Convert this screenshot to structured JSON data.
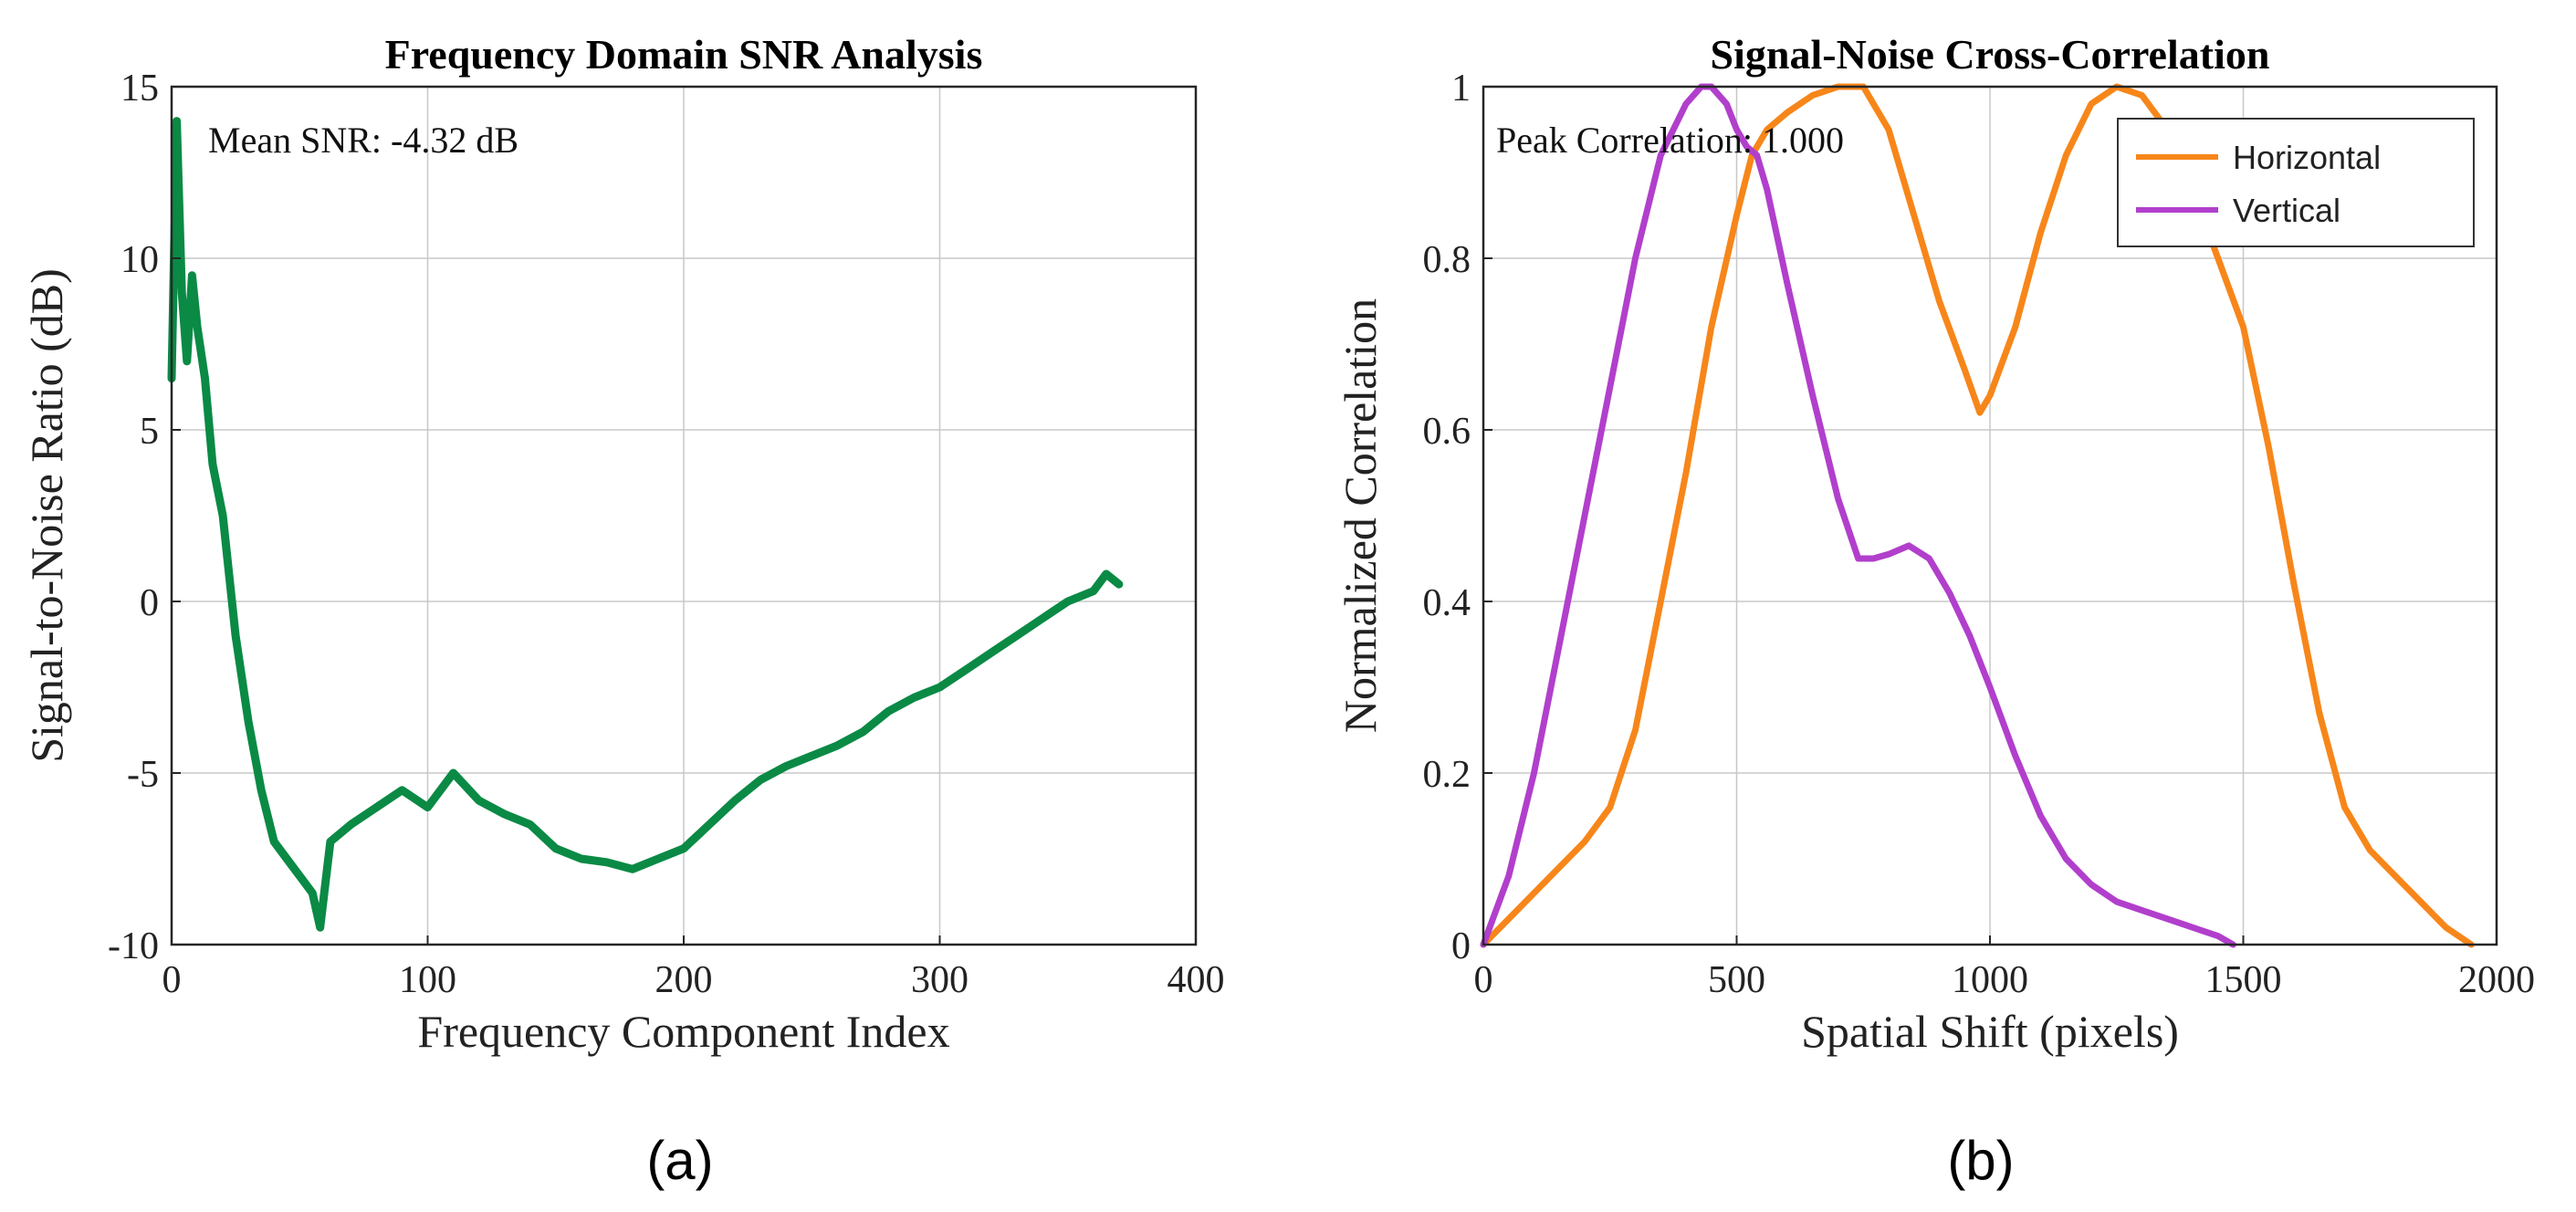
{
  "chart_data": [
    {
      "type": "line",
      "panel": "(a)",
      "title": "Frequency Domain SNR Analysis",
      "xlabel": "Frequency Component Index",
      "ylabel": "Signal-to-Noise Ratio (dB)",
      "xlim": [
        0,
        400
      ],
      "ylim": [
        -10,
        15
      ],
      "xticks": [
        0,
        100,
        200,
        300,
        400
      ],
      "yticks": [
        -10,
        -5,
        0,
        5,
        10,
        15
      ],
      "grid": true,
      "annotation": "Mean SNR: -4.32 dB",
      "series": [
        {
          "name": "SNR",
          "color": "#0a8a45",
          "x": [
            0,
            2,
            4,
            6,
            8,
            10,
            13,
            16,
            20,
            25,
            30,
            35,
            40,
            45,
            50,
            55,
            58,
            62,
            70,
            80,
            90,
            100,
            110,
            120,
            130,
            140,
            150,
            160,
            170,
            180,
            190,
            200,
            210,
            220,
            230,
            240,
            250,
            260,
            270,
            280,
            290,
            300,
            310,
            320,
            330,
            340,
            350,
            360,
            365,
            370
          ],
          "y": [
            6.5,
            14,
            9,
            7,
            9.5,
            8,
            6.5,
            4,
            2.5,
            -1,
            -3.5,
            -5.5,
            -7,
            -7.5,
            -8,
            -8.5,
            -9.5,
            -7,
            -6.5,
            -6,
            -5.5,
            -6,
            -5,
            -5.8,
            -6.2,
            -6.5,
            -7.2,
            -7.5,
            -7.6,
            -7.8,
            -7.5,
            -7.2,
            -6.5,
            -5.8,
            -5.2,
            -4.8,
            -4.5,
            -4.2,
            -3.8,
            -3.2,
            -2.8,
            -2.5,
            -2,
            -1.5,
            -1,
            -0.5,
            0,
            0.3,
            0.8,
            0.5
          ]
        }
      ]
    },
    {
      "type": "line",
      "panel": "(b)",
      "title": "Signal-Noise Cross-Correlation",
      "xlabel": "Spatial Shift (pixels)",
      "ylabel": "Normalized Correlation",
      "xlim": [
        0,
        2000
      ],
      "ylim": [
        0,
        1
      ],
      "xticks": [
        0,
        500,
        1000,
        1500,
        2000
      ],
      "yticks": [
        0,
        0.2,
        0.4,
        0.6,
        0.8,
        1
      ],
      "grid": true,
      "annotation": "Peak Correlation: 1.000",
      "legend_position": "top-right",
      "series": [
        {
          "name": "Horizontal",
          "color": "#f7861a",
          "x": [
            0,
            100,
            200,
            250,
            300,
            350,
            400,
            450,
            500,
            530,
            560,
            600,
            650,
            700,
            750,
            800,
            850,
            900,
            950,
            980,
            1000,
            1050,
            1100,
            1150,
            1200,
            1250,
            1300,
            1350,
            1400,
            1450,
            1500,
            1550,
            1600,
            1650,
            1700,
            1750,
            1800,
            1850,
            1900,
            1950
          ],
          "y": [
            0,
            0.06,
            0.12,
            0.16,
            0.25,
            0.4,
            0.55,
            0.72,
            0.85,
            0.92,
            0.95,
            0.97,
            0.99,
            1,
            1,
            0.95,
            0.85,
            0.75,
            0.67,
            0.62,
            0.64,
            0.72,
            0.83,
            0.92,
            0.98,
            1,
            0.99,
            0.95,
            0.88,
            0.8,
            0.72,
            0.58,
            0.42,
            0.27,
            0.16,
            0.11,
            0.08,
            0.05,
            0.02,
            0
          ]
        },
        {
          "name": "Vertical",
          "color": "#b13fcc",
          "x": [
            0,
            50,
            100,
            150,
            200,
            250,
            300,
            350,
            400,
            430,
            450,
            480,
            500,
            520,
            540,
            560,
            600,
            650,
            700,
            740,
            770,
            800,
            840,
            880,
            920,
            960,
            1000,
            1050,
            1100,
            1150,
            1200,
            1250,
            1300,
            1350,
            1400,
            1450,
            1480
          ],
          "y": [
            0,
            0.08,
            0.2,
            0.35,
            0.5,
            0.65,
            0.8,
            0.92,
            0.98,
            1,
            1,
            0.98,
            0.95,
            0.93,
            0.92,
            0.88,
            0.77,
            0.64,
            0.52,
            0.45,
            0.45,
            0.455,
            0.465,
            0.45,
            0.41,
            0.36,
            0.3,
            0.22,
            0.15,
            0.1,
            0.07,
            0.05,
            0.04,
            0.03,
            0.02,
            0.01,
            0
          ]
        }
      ]
    }
  ],
  "captions": [
    "(a)",
    "(b)"
  ]
}
